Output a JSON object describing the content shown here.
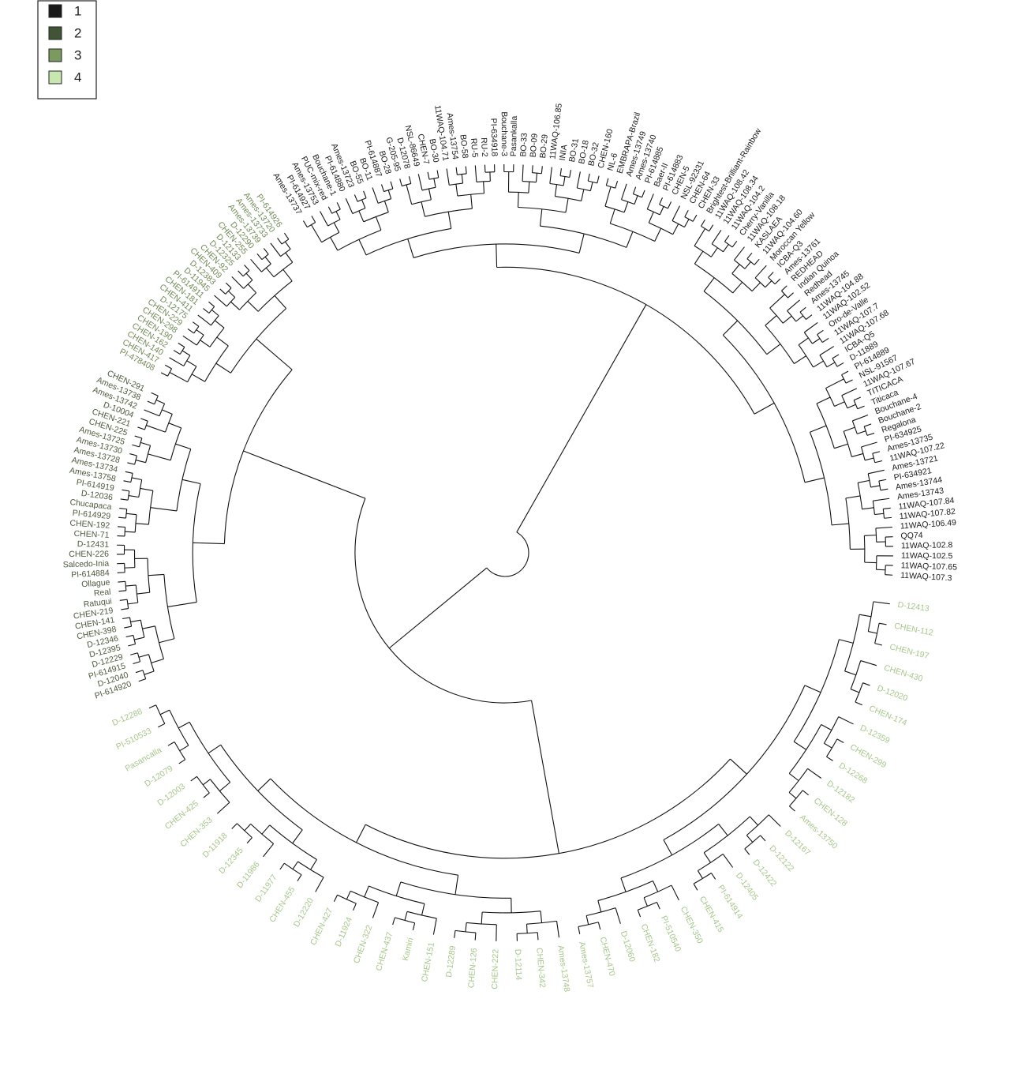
{
  "legend": [
    {
      "label": "1",
      "color": "#1a1a1a",
      "label_color": "#1a1a1a"
    },
    {
      "label": "2",
      "color": "#3f5535",
      "label_color": "#4b5a3d"
    },
    {
      "label": "3",
      "color": "#7a9a5f",
      "label_color": "#6f8a55"
    },
    {
      "label": "4",
      "color": "#c8e6b0",
      "label_color": "#a6c78a"
    }
  ],
  "clusters": [
    {
      "leaves": [
        "Ames-13737",
        "PI-614927",
        "Ames-13753",
        "PUC-mix-red",
        "Bouchane-1",
        "PI-614880",
        "Ames-13723",
        "BO-55",
        "BO-11",
        "PI-614887",
        "BO-28",
        "G-205-95",
        "D-12078",
        "NSL-86649",
        "CHEN-7",
        "BO-30",
        "11WAQ-104.71",
        "Ames-13754",
        "BO-58",
        "RU-5",
        "RU-2",
        "PI-634918",
        "Bouchane-3",
        "Pasankalla",
        "BO-33",
        "BO-09",
        "BO-29",
        "11WAQ-106.85",
        "INIA",
        "BO-31",
        "BO-18",
        "BO-32",
        "CHEN-160",
        "NL-6",
        "EMBRAPA-Brazil",
        "Ames-13749",
        "Ames-13740",
        "PI-614885",
        "Baer-II",
        "PI-614883",
        "CHEN-5",
        "NSL-92331",
        "CHEN-64",
        "CHEN-33",
        "Brightest-Brilliant-Rainbow",
        "11WAQ-108.42",
        "11WAQ-108.34",
        "11WAQ-104.2",
        "Cherry-Vanilla",
        "11WAQ-108.18",
        "KASLAEA",
        "11WAQ-104.60",
        "Moroccan Yellow",
        "ICBA-Q3",
        "Ames-13761",
        "REDHEAD",
        "Indian Quinoa",
        "Redhead",
        "Ames-13745",
        "11WAQ-104.88",
        "11WAQ-102.52",
        "Oro-de-Valle",
        "11WAQ-107.7",
        "11WAQ-107.68",
        "ICBA-Q5",
        "D-11889",
        "PI-614889",
        "NSL-91567",
        "11WAQ-107.67",
        "TITICACA",
        "Titicaca",
        "Bouchane-4",
        "Bouchane-2",
        "Regalona",
        "PI-634925",
        "Ames-13735",
        "11WAQ-107.22",
        "Ames-13721",
        "PI-634921",
        "Ames-13744",
        "Ames-13743",
        "11WAQ-107.84",
        "11WAQ-107.82",
        "11WAQ-106.49",
        "QQ74",
        "11WAQ-102.8",
        "11WAQ-102.5",
        "11WAQ-107.65",
        "11WAQ-107.3"
      ]
    },
    {
      "leaves": [
        "PI-614920",
        "D-12040",
        "PI-614915",
        "D-12229",
        "D-12395",
        "D-12346",
        "CHEN-398",
        "CHEN-141",
        "CHEN-219",
        "Ratuqui",
        "Real",
        "Ollague",
        "PI-614884",
        "Salcedo-Inia",
        "CHEN-226",
        "D-12431",
        "CHEN-71",
        "CHEN-192",
        "PI-614929",
        "Chucapaca",
        "D-12036",
        "PI-614919",
        "Ames-13758",
        "Ames-13734",
        "Ames-13728",
        "Ames-13730",
        "Ames-13725",
        "CHEN-225",
        "CHEN-221",
        "D-10004",
        "Ames-13742",
        "Ames-13738",
        "CHEN-291"
      ]
    },
    {
      "leaves": [
        "PI-478408",
        "CHEN-417",
        "CHEN-140",
        "CHEN-162",
        "CHEN-190",
        "CHEN-298",
        "CHEN-229",
        "D-12175",
        "CHEN-411",
        "CHEN-181",
        "PI-614911",
        "D-11945",
        "D-12383",
        "CHEN-409",
        "CHEN-92",
        "D-12325",
        "D-12133",
        "CHEN-255",
        "D-12290",
        "Ames-13739",
        "Ames-13733",
        "Ames-13720",
        "PI-614926"
      ]
    },
    {
      "leaves": [
        "D-12413",
        "CHEN-112",
        "CHEN-197",
        "CHEN-430",
        "D-12020",
        "CHEN-174",
        "D-12359",
        "CHEN-299",
        "D-12268",
        "D-12182",
        "CHEN-128",
        "Ames-13750",
        "D-12167",
        "D-12122",
        "D-12422",
        "D-12405",
        "PI-614914",
        "CHEN-415",
        "CHEN-350",
        "PI-510540",
        "CHEN-182",
        "D-12060",
        "CHEN-470",
        "Ames-13757",
        "Ames-13748",
        "CHEN-342",
        "D-12114",
        "CHEN-222",
        "CHEN-126",
        "D-12289",
        "CHEN-151",
        "Kamiri",
        "CHEN-437",
        "CHEN-322",
        "D-11924",
        "CHEN-427",
        "D-12220",
        "CHEN-455",
        "D-11977",
        "D-11986",
        "D-12345",
        "D-11918",
        "CHEN-353",
        "CHEN-425",
        "D-12003",
        "D-12079",
        "Pasancalla",
        "PI-510533",
        "D-12288"
      ]
    }
  ]
}
